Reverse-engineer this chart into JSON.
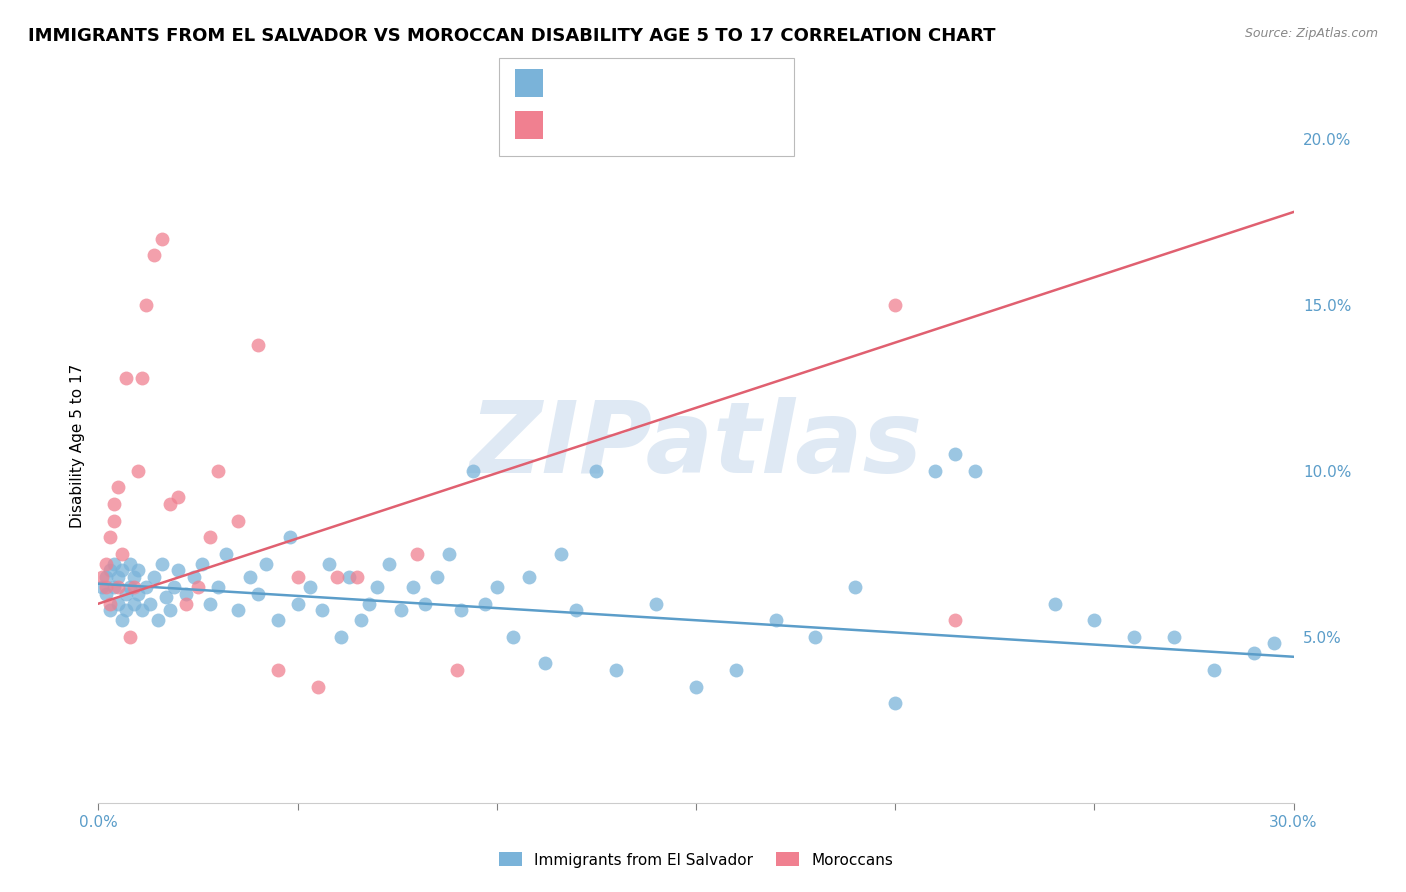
{
  "title": "IMMIGRANTS FROM EL SALVADOR VS MOROCCAN DISABILITY AGE 5 TO 17 CORRELATION CHART",
  "source": "Source: ZipAtlas.com",
  "ylabel": "Disability Age 5 to 17",
  "x_min": 0.0,
  "x_max": 0.3,
  "y_min": 0.0,
  "y_max": 0.215,
  "y_ticks_right": [
    0.05,
    0.1,
    0.15,
    0.2
  ],
  "y_tick_labels_right": [
    "5.0%",
    "10.0%",
    "15.0%",
    "20.0%"
  ],
  "blue_scatter_x": [
    0.001,
    0.002,
    0.002,
    0.003,
    0.003,
    0.004,
    0.004,
    0.005,
    0.005,
    0.006,
    0.006,
    0.007,
    0.007,
    0.008,
    0.008,
    0.009,
    0.009,
    0.01,
    0.01,
    0.011,
    0.012,
    0.013,
    0.014,
    0.015,
    0.016,
    0.017,
    0.018,
    0.019,
    0.02,
    0.022,
    0.024,
    0.026,
    0.028,
    0.03,
    0.032,
    0.035,
    0.038,
    0.04,
    0.042,
    0.045,
    0.048,
    0.05,
    0.053,
    0.056,
    0.058,
    0.061,
    0.063,
    0.066,
    0.068,
    0.07,
    0.073,
    0.076,
    0.079,
    0.082,
    0.085,
    0.088,
    0.091,
    0.094,
    0.097,
    0.1,
    0.104,
    0.108,
    0.112,
    0.116,
    0.12,
    0.125,
    0.13,
    0.14,
    0.15,
    0.16,
    0.17,
    0.18,
    0.19,
    0.2,
    0.21,
    0.215,
    0.22,
    0.24,
    0.25,
    0.26,
    0.27,
    0.28,
    0.29,
    0.295
  ],
  "blue_scatter_y": [
    0.065,
    0.068,
    0.063,
    0.07,
    0.058,
    0.065,
    0.072,
    0.06,
    0.068,
    0.055,
    0.07,
    0.063,
    0.058,
    0.065,
    0.072,
    0.068,
    0.06,
    0.063,
    0.07,
    0.058,
    0.065,
    0.06,
    0.068,
    0.055,
    0.072,
    0.062,
    0.058,
    0.065,
    0.07,
    0.063,
    0.068,
    0.072,
    0.06,
    0.065,
    0.075,
    0.058,
    0.068,
    0.063,
    0.072,
    0.055,
    0.08,
    0.06,
    0.065,
    0.058,
    0.072,
    0.05,
    0.068,
    0.055,
    0.06,
    0.065,
    0.072,
    0.058,
    0.065,
    0.06,
    0.068,
    0.075,
    0.058,
    0.1,
    0.06,
    0.065,
    0.05,
    0.068,
    0.042,
    0.075,
    0.058,
    0.1,
    0.04,
    0.06,
    0.035,
    0.04,
    0.055,
    0.05,
    0.065,
    0.03,
    0.1,
    0.105,
    0.1,
    0.06,
    0.055,
    0.05,
    0.05,
    0.04,
    0.045,
    0.048
  ],
  "pink_scatter_x": [
    0.001,
    0.002,
    0.002,
    0.003,
    0.003,
    0.004,
    0.004,
    0.005,
    0.005,
    0.006,
    0.007,
    0.008,
    0.009,
    0.01,
    0.011,
    0.012,
    0.014,
    0.016,
    0.018,
    0.02,
    0.022,
    0.025,
    0.028,
    0.03,
    0.035,
    0.04,
    0.045,
    0.05,
    0.055,
    0.06,
    0.065,
    0.08,
    0.09,
    0.2,
    0.215
  ],
  "pink_scatter_y": [
    0.068,
    0.072,
    0.065,
    0.08,
    0.06,
    0.085,
    0.09,
    0.095,
    0.065,
    0.075,
    0.128,
    0.05,
    0.065,
    0.1,
    0.128,
    0.15,
    0.165,
    0.17,
    0.09,
    0.092,
    0.06,
    0.065,
    0.08,
    0.1,
    0.085,
    0.138,
    0.04,
    0.068,
    0.035,
    0.068,
    0.068,
    0.075,
    0.04,
    0.15,
    0.055
  ],
  "blue_line_x": [
    0.0,
    0.3
  ],
  "blue_line_y": [
    0.066,
    0.044
  ],
  "pink_line_x": [
    0.0,
    0.3
  ],
  "pink_line_y": [
    0.06,
    0.178
  ],
  "scatter_color_blue": "#7ab3d9",
  "scatter_color_pink": "#f08090",
  "line_color_blue": "#5b9dc9",
  "line_color_pink": "#e06070",
  "background_color": "#ffffff",
  "grid_color": "#d0d0d0",
  "title_fontsize": 13,
  "axis_label_color": "#5b9dc9",
  "watermark_text": "ZIPatlas",
  "legend_label_blue": "Immigrants from El Salvador",
  "legend_label_pink": "Moroccans"
}
